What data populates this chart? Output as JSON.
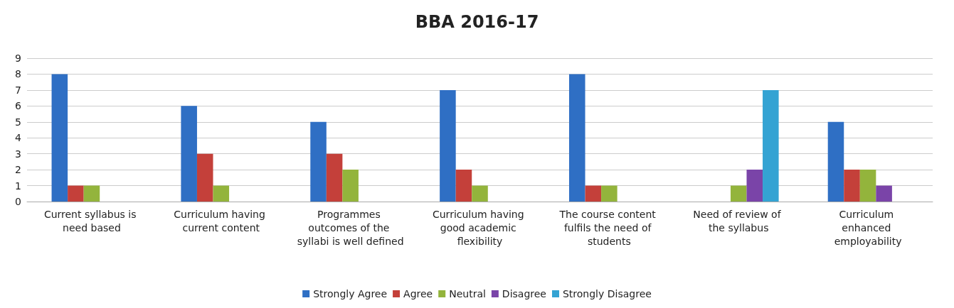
{
  "chart_data": {
    "type": "bar",
    "title": "BBA 2016-17",
    "categories": [
      "Current syllabus is need based",
      "Curriculum having current content",
      "Programmes outcomes of the syllabi is well defined",
      "Curriculum having good academic flexibility",
      "The course content fulfils the need of students",
      "Need of review of the syllabus",
      "Curriculum enhanced employability"
    ],
    "series": [
      {
        "name": "Strongly Agree",
        "color": "#2f6fc4",
        "values": [
          8,
          6,
          5,
          7,
          8,
          0,
          5
        ]
      },
      {
        "name": "Agree",
        "color": "#c4403a",
        "values": [
          1,
          3,
          3,
          2,
          1,
          0,
          2
        ]
      },
      {
        "name": "Neutral",
        "color": "#93b43c",
        "values": [
          1,
          1,
          2,
          1,
          1,
          1,
          2
        ]
      },
      {
        "name": "Disagree",
        "color": "#7a44a8",
        "values": [
          0,
          0,
          0,
          0,
          0,
          2,
          1
        ]
      },
      {
        "name": "Strongly Disagree",
        "color": "#34a3d3",
        "values": [
          0,
          0,
          0,
          0,
          0,
          7,
          0
        ]
      }
    ],
    "ylim": [
      0,
      9
    ],
    "yticks": [
      0,
      1,
      2,
      3,
      4,
      5,
      6,
      7,
      8,
      9
    ],
    "grid": "y",
    "legend": "bottom"
  }
}
